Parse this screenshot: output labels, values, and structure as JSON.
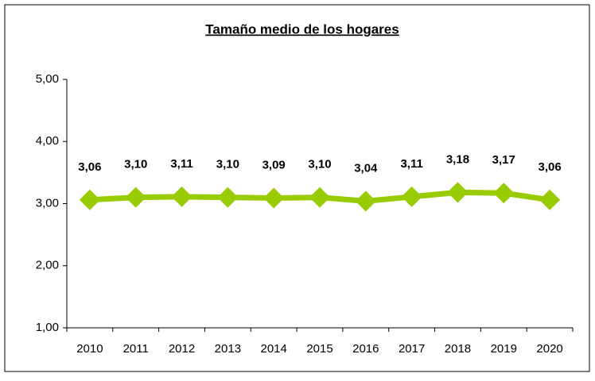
{
  "chart_data": {
    "type": "line",
    "title": "Tamaño medio de los hogares",
    "categories": [
      "2010",
      "2011",
      "2012",
      "2013",
      "2014",
      "2015",
      "2016",
      "2017",
      "2018",
      "2019",
      "2020"
    ],
    "series": [
      {
        "color": "#99cc00",
        "values": [
          3.06,
          3.1,
          3.11,
          3.1,
          3.09,
          3.1,
          3.04,
          3.11,
          3.18,
          3.17,
          3.06
        ],
        "value_labels": [
          "3,06",
          "3,10",
          "3,11",
          "3,10",
          "3,09",
          "3,10",
          "3,04",
          "3,11",
          "3,18",
          "3,17",
          "3,06"
        ]
      }
    ],
    "ylim": [
      1,
      5
    ],
    "yticks": [
      {
        "value": 1,
        "label": "1,00"
      },
      {
        "value": 2,
        "label": "2,00"
      },
      {
        "value": 3,
        "label": "3,00"
      },
      {
        "value": 4,
        "label": "4,00"
      },
      {
        "value": 5,
        "label": "5,00"
      }
    ],
    "grid": false
  }
}
